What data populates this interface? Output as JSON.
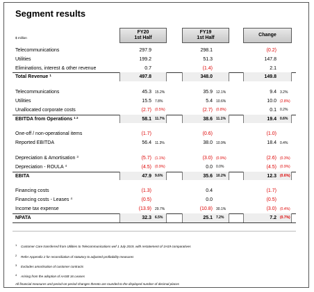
{
  "title": "Segment results",
  "header": {
    "unit": "$ million",
    "columns": [
      [
        "FY20",
        "1st Half"
      ],
      [
        "FY19",
        "1st Half"
      ],
      [
        "Change"
      ]
    ]
  },
  "sections": [
    [
      {
        "label": "Telecommunications",
        "cells": [
          [
            "297.9"
          ],
          [
            "298.1"
          ],
          [
            "(0.2)"
          ]
        ]
      },
      {
        "label": "Utilities",
        "cells": [
          [
            "199.2"
          ],
          [
            "51.3"
          ],
          [
            "147.8"
          ]
        ]
      },
      {
        "label": "Eliminations, interest & other revenue",
        "cells": [
          [
            "0.7"
          ],
          [
            "(1.4)"
          ],
          [
            "2.1"
          ]
        ]
      },
      {
        "label": "Total Revenue",
        "note": "1",
        "bold": true,
        "cells": [
          [
            "497.8"
          ],
          [
            "348.0"
          ],
          [
            "149.8"
          ]
        ]
      }
    ],
    [
      {
        "label": "Telecommunications",
        "cells": [
          [
            "45.3",
            "15.2%"
          ],
          [
            "35.9",
            "12.1%"
          ],
          [
            "9.4",
            "3.2%"
          ]
        ]
      },
      {
        "label": "Utilities",
        "cells": [
          [
            "15.5",
            "7.8%"
          ],
          [
            "5.4",
            "10.6%"
          ],
          [
            "10.0",
            "(2.8%)"
          ]
        ]
      },
      {
        "label": "Unallocated corporate costs",
        "cells": [
          [
            "(2.7)",
            "(0.5%)"
          ],
          [
            "(2.7)",
            "(0.8%)"
          ],
          [
            "0.1",
            "0.2%"
          ]
        ]
      },
      {
        "label": "EBITDA from Operations",
        "note": "1 2",
        "bold": true,
        "cells": [
          [
            "58.1",
            "11.7%"
          ],
          [
            "38.6",
            "11.1%"
          ],
          [
            "19.4",
            "0.6%"
          ]
        ]
      }
    ],
    [
      {
        "label": "One-off / non-operational items",
        "cells": [
          [
            "(1.7)"
          ],
          [
            "(0.6)"
          ],
          [
            "(1.0)"
          ]
        ]
      },
      {
        "label": "Reported EBITDA",
        "cells": [
          [
            "56.4",
            "11.3%"
          ],
          [
            "38.0",
            "10.9%"
          ],
          [
            "18.4",
            "0.4%"
          ]
        ]
      }
    ],
    [
      {
        "label": "Depreciation & Amortisation",
        "note": "3",
        "cells": [
          [
            "(5.7)",
            "(1.1%)"
          ],
          [
            "(3.0)",
            "(0.9%)"
          ],
          [
            "(2.6)",
            "(0.3%)"
          ]
        ]
      },
      {
        "label": "Depreciation - ROULA",
        "note": "4",
        "cells": [
          [
            "(4.5)",
            "(0.9%)"
          ],
          [
            "0.0",
            "0.0%"
          ],
          [
            "(4.5)",
            "(0.9%)"
          ]
        ]
      },
      {
        "label": "EBITA",
        "bold": true,
        "cells": [
          [
            "47.9",
            "9.6%"
          ],
          [
            "35.6",
            "10.2%"
          ],
          [
            "12.3",
            "(0.6%)"
          ]
        ]
      }
    ],
    [
      {
        "label": "Financing costs",
        "cells": [
          [
            "(1.3)"
          ],
          [
            "0.4"
          ],
          [
            "(1.7)"
          ]
        ]
      },
      {
        "label": "Financing costs - Leases",
        "note": "4",
        "cells": [
          [
            "(0.5)"
          ],
          [
            "0.0"
          ],
          [
            "(0.5)"
          ]
        ]
      },
      {
        "label": "Income tax expense",
        "cells": [
          [
            "(13.9)",
            "29.7%"
          ],
          [
            "(10.8)",
            "30.1%"
          ],
          [
            "(3.0)",
            "(0.4%)"
          ]
        ]
      },
      {
        "label": "NPATA",
        "bold": true,
        "cells": [
          [
            "32.3",
            "6.5%"
          ],
          [
            "25.1",
            "7.2%"
          ],
          [
            "7.2",
            "(0.7%)"
          ]
        ]
      }
    ]
  ],
  "footnotes": [
    {
      "mark": "1",
      "text": "Customer Care transferred from Utilities to Telecommunications wef 1 July 2019, with restatement of 1H19 comparatives"
    },
    {
      "mark": "2",
      "text": "Refer Appendix 2 for reconciliation of statutory to adjusted profitability measures"
    },
    {
      "mark": "3",
      "text": "Excludes amortisation of customer contracts"
    },
    {
      "mark": "4",
      "text": "Arising from the adoption of AASB 16 Leases"
    },
    {
      "text": "All financial measures and period-on-period changes thereto are rounded to the displayed number of decimal places"
    }
  ]
}
